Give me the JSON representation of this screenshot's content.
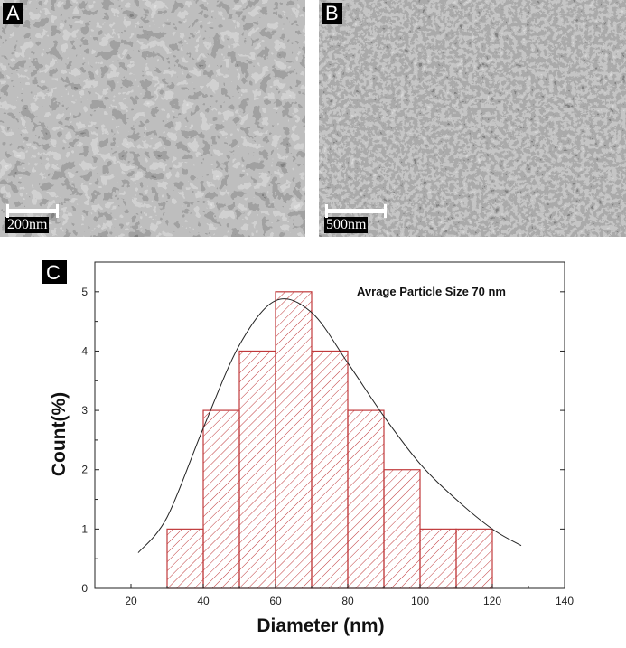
{
  "panels": {
    "a": {
      "letter": "A",
      "scale_label": "200nm"
    },
    "b": {
      "letter": "B",
      "scale_label": "500nm"
    },
    "c": {
      "letter": "C"
    }
  },
  "chart_data": {
    "type": "bar",
    "annotation": "Avrage Particle Size 70 nm",
    "xlabel": "Diameter (nm)",
    "ylabel": "Count(%)",
    "xlim": [
      10,
      140
    ],
    "ylim": [
      0,
      5.5
    ],
    "xticks": [
      20,
      40,
      60,
      80,
      100,
      120,
      140
    ],
    "yticks": [
      0,
      1,
      2,
      3,
      4,
      5
    ],
    "bins": [
      {
        "start": 30,
        "end": 40,
        "value": 1
      },
      {
        "start": 40,
        "end": 50,
        "value": 3
      },
      {
        "start": 50,
        "end": 60,
        "value": 4
      },
      {
        "start": 60,
        "end": 70,
        "value": 5
      },
      {
        "start": 70,
        "end": 80,
        "value": 4
      },
      {
        "start": 80,
        "end": 90,
        "value": 3
      },
      {
        "start": 90,
        "end": 100,
        "value": 2
      },
      {
        "start": 100,
        "end": 110,
        "value": 1
      },
      {
        "start": 110,
        "end": 120,
        "value": 1
      }
    ],
    "fit_curve": {
      "type": "lognormal",
      "points": [
        [
          22,
          0.6
        ],
        [
          30,
          1.2
        ],
        [
          40,
          2.7
        ],
        [
          50,
          4.1
        ],
        [
          60,
          4.85
        ],
        [
          70,
          4.65
        ],
        [
          80,
          3.8
        ],
        [
          90,
          2.9
        ],
        [
          100,
          2.1
        ],
        [
          110,
          1.5
        ],
        [
          120,
          1.0
        ],
        [
          128,
          0.72
        ]
      ]
    },
    "colors": {
      "bar_stroke": "#c0393b",
      "hatch": "#c0393b",
      "curve": "#222222",
      "axis": "#222222"
    }
  }
}
